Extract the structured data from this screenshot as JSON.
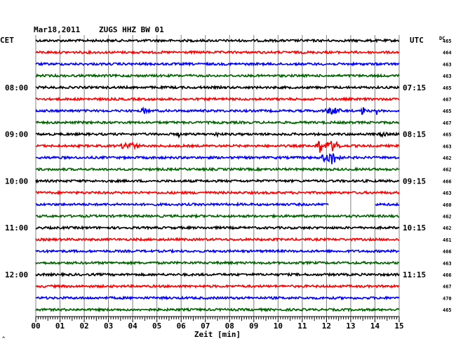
{
  "header": {
    "date": "Mar18,2011",
    "station": "ZUGS HHZ BW 01",
    "left_tz": "CET",
    "right_tz": "UTC",
    "dc_label": "DC",
    "corner_mark": "^"
  },
  "colors": {
    "trace_cycle": [
      "#000000",
      "#ff0000",
      "#0000ff",
      "#006400"
    ],
    "grid": "#808080",
    "background": "#ffffff"
  },
  "chart_data": {
    "type": "line",
    "title": "Mar18,2011   ZUGS HHZ BW 01",
    "xlabel": "Zeit [min]",
    "ylabel": "",
    "x_ticks": [
      "00",
      "01",
      "02",
      "03",
      "04",
      "05",
      "06",
      "07",
      "08",
      "09",
      "10",
      "11",
      "12",
      "13",
      "14",
      "15"
    ],
    "xlim": [
      0,
      15
    ],
    "left_time_labels": [
      {
        "row": 4,
        "label": "08:00"
      },
      {
        "row": 8,
        "label": "09:00"
      },
      {
        "row": 12,
        "label": "10:00"
      },
      {
        "row": 16,
        "label": "11:00"
      },
      {
        "row": 20,
        "label": "12:00"
      }
    ],
    "right_time_labels": [
      {
        "row": 4,
        "label": "07:15"
      },
      {
        "row": 8,
        "label": "08:15"
      },
      {
        "row": 12,
        "label": "09:15"
      },
      {
        "row": 16,
        "label": "10:15"
      },
      {
        "row": 20,
        "label": "11:15"
      }
    ],
    "dc_values": [
      "465",
      "464",
      "463",
      "463",
      "465",
      "467",
      "465",
      "467",
      "465",
      "463",
      "462",
      "462",
      "466",
      "463",
      "460",
      "462",
      "462",
      "461",
      "466",
      "463",
      "466",
      "467",
      "470",
      "465"
    ],
    "events": [
      {
        "row": 6,
        "x_start": 4.3,
        "x_end": 4.7,
        "amp": 5
      },
      {
        "row": 6,
        "x_start": 11.9,
        "x_end": 12.6,
        "amp": 6
      },
      {
        "row": 6,
        "x_start": 13.4,
        "x_end": 13.6,
        "amp": 7
      },
      {
        "row": 6,
        "x_start": 14.0,
        "x_end": 14.15,
        "amp": 6
      },
      {
        "row": 8,
        "x_start": 5.85,
        "x_end": 5.95,
        "amp": 6
      },
      {
        "row": 8,
        "x_start": 7.3,
        "x_end": 7.6,
        "amp": 4
      },
      {
        "row": 8,
        "x_start": 14.2,
        "x_end": 14.5,
        "amp": 5
      },
      {
        "row": 9,
        "x_start": 3.4,
        "x_end": 4.3,
        "amp": 6
      },
      {
        "row": 9,
        "x_start": 11.6,
        "x_end": 11.8,
        "amp": 16
      },
      {
        "row": 9,
        "x_start": 11.85,
        "x_end": 12.6,
        "amp": 8
      },
      {
        "row": 10,
        "x_start": 11.8,
        "x_end": 12.6,
        "amp": 10
      }
    ],
    "gaps": [
      {
        "row": 14,
        "x_start": 12.1,
        "x_end": 14.0
      }
    ]
  }
}
